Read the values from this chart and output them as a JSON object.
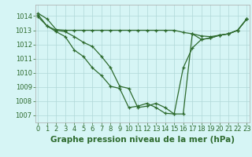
{
  "title": "Graphe pression niveau de la mer (hPa)",
  "bg_color": "#d6f5f5",
  "grid_color": "#b0d8d8",
  "line_color": "#2d6a2d",
  "x_ticks": [
    0,
    1,
    2,
    3,
    4,
    5,
    6,
    7,
    8,
    9,
    10,
    11,
    12,
    13,
    14,
    15,
    16,
    17,
    18,
    19,
    20,
    21,
    22,
    23
  ],
  "ylim": [
    1006.5,
    1014.8
  ],
  "xlim": [
    -0.3,
    23.3
  ],
  "line1": [
    1014.2,
    1013.8,
    1013.05,
    1013.0,
    1013.0,
    1013.0,
    1013.0,
    1013.0,
    1013.0,
    1013.0,
    1013.0,
    1013.0,
    1013.0,
    1013.0,
    1013.0,
    1013.0,
    1012.85,
    1012.75,
    1012.6,
    1012.55,
    1012.65,
    1012.75,
    1013.0,
    1013.8
  ],
  "line2": [
    1014.1,
    1013.3,
    1012.9,
    1012.55,
    1011.6,
    1011.15,
    1010.35,
    1009.8,
    1009.05,
    1008.9,
    1007.55,
    1007.65,
    1007.85,
    1007.55,
    1007.15,
    1007.1,
    1010.35,
    1011.75,
    1012.35,
    1012.45,
    1012.65,
    1012.75,
    1013.0,
    1013.8
  ],
  "line3": [
    1013.95,
    1013.3,
    1013.0,
    1012.9,
    1012.55,
    1012.15,
    1011.85,
    1011.15,
    1010.35,
    1009.05,
    1008.9,
    1007.55,
    1007.65,
    1007.85,
    1007.55,
    1007.1,
    1007.1,
    1012.75,
    1012.35,
    1012.45,
    1012.65,
    1012.75,
    1013.0,
    1013.8
  ],
  "title_color": "#2d6a2d",
  "tick_color": "#2d6a2d",
  "tick_fontsize": 6,
  "title_fontsize": 7.5,
  "yticks": [
    1007,
    1008,
    1009,
    1010,
    1011,
    1012,
    1013,
    1014
  ]
}
